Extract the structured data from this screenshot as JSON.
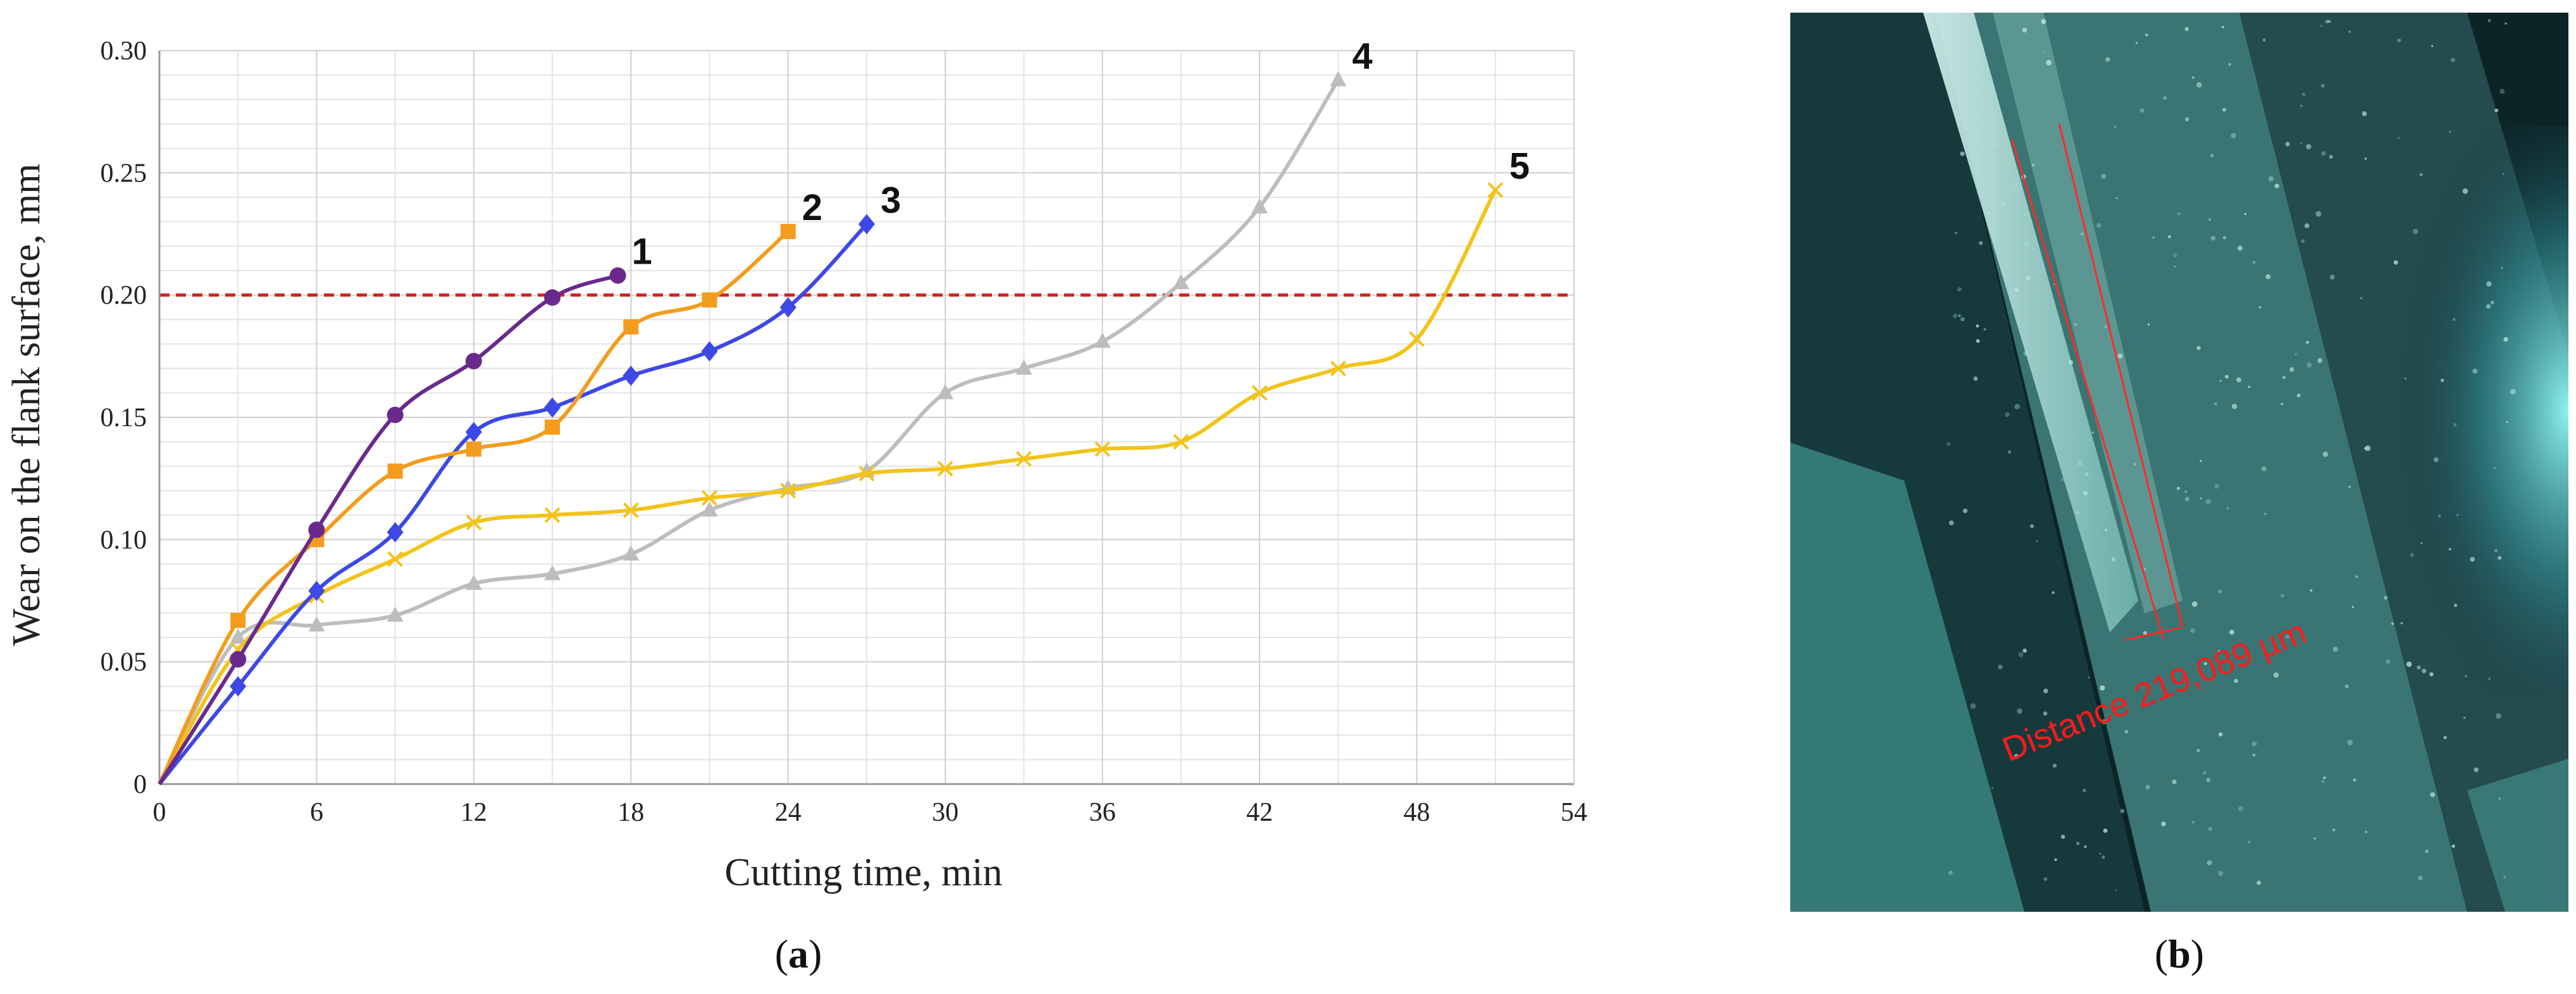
{
  "panels": {
    "a": {
      "caption_open": "(",
      "caption_letter": "a",
      "caption_close": ")"
    },
    "b": {
      "caption_open": "(",
      "caption_letter": "b",
      "caption_close": ")",
      "measurement_text": "Distance 219,089 µm",
      "measurement_color": "#ff1a1a"
    }
  },
  "chart_data": {
    "type": "line",
    "xlabel": "Cutting time, min",
    "ylabel": "Wear on the flank surface, mm",
    "xlim": [
      0,
      54
    ],
    "ylim": [
      0,
      0.3
    ],
    "x_ticks": [
      0,
      6,
      12,
      18,
      24,
      30,
      36,
      42,
      48,
      54
    ],
    "y_ticks": [
      "0",
      "0.05",
      "0.10",
      "0.15",
      "0.20",
      "0.25",
      "0.30"
    ],
    "grid": true,
    "threshold": {
      "y": 0.2,
      "color": "#d42020",
      "style": "dashed"
    },
    "series": [
      {
        "label": "1",
        "color": "#6a2a8c",
        "marker": "circle",
        "x": [
          0,
          3,
          6,
          9,
          12,
          15,
          17.5
        ],
        "y": [
          0,
          0.051,
          0.104,
          0.151,
          0.173,
          0.199,
          0.208
        ]
      },
      {
        "label": "2",
        "color": "#f39c1d",
        "marker": "square",
        "x": [
          0,
          3,
          6,
          9,
          12,
          15,
          18,
          21,
          24
        ],
        "y": [
          0,
          0.067,
          0.1,
          0.128,
          0.137,
          0.146,
          0.187,
          0.198,
          0.226
        ]
      },
      {
        "label": "3",
        "color": "#3d48e6",
        "marker": "diamond",
        "x": [
          0,
          3,
          6,
          9,
          12,
          15,
          18,
          21,
          24,
          27
        ],
        "y": [
          0,
          0.04,
          0.079,
          0.103,
          0.144,
          0.154,
          0.167,
          0.177,
          0.195,
          0.229
        ]
      },
      {
        "label": "4",
        "color": "#bdbdbd",
        "marker": "triangle",
        "x": [
          0,
          3,
          6,
          9,
          12,
          15,
          18,
          21,
          24,
          27,
          30,
          33,
          36,
          39,
          42,
          45
        ],
        "y": [
          0,
          0.06,
          0.065,
          0.069,
          0.082,
          0.086,
          0.094,
          0.112,
          0.121,
          0.128,
          0.16,
          0.17,
          0.181,
          0.205,
          0.236,
          0.288
        ]
      },
      {
        "label": "5",
        "color": "#f2c418",
        "marker": "x",
        "x": [
          0,
          3,
          6,
          9,
          12,
          15,
          18,
          21,
          24,
          27,
          30,
          33,
          36,
          39,
          42,
          45,
          48,
          51
        ],
        "y": [
          0,
          0.055,
          0.077,
          0.092,
          0.107,
          0.11,
          0.112,
          0.117,
          0.12,
          0.127,
          0.129,
          0.133,
          0.137,
          0.14,
          0.16,
          0.17,
          0.182,
          0.243
        ]
      }
    ]
  }
}
